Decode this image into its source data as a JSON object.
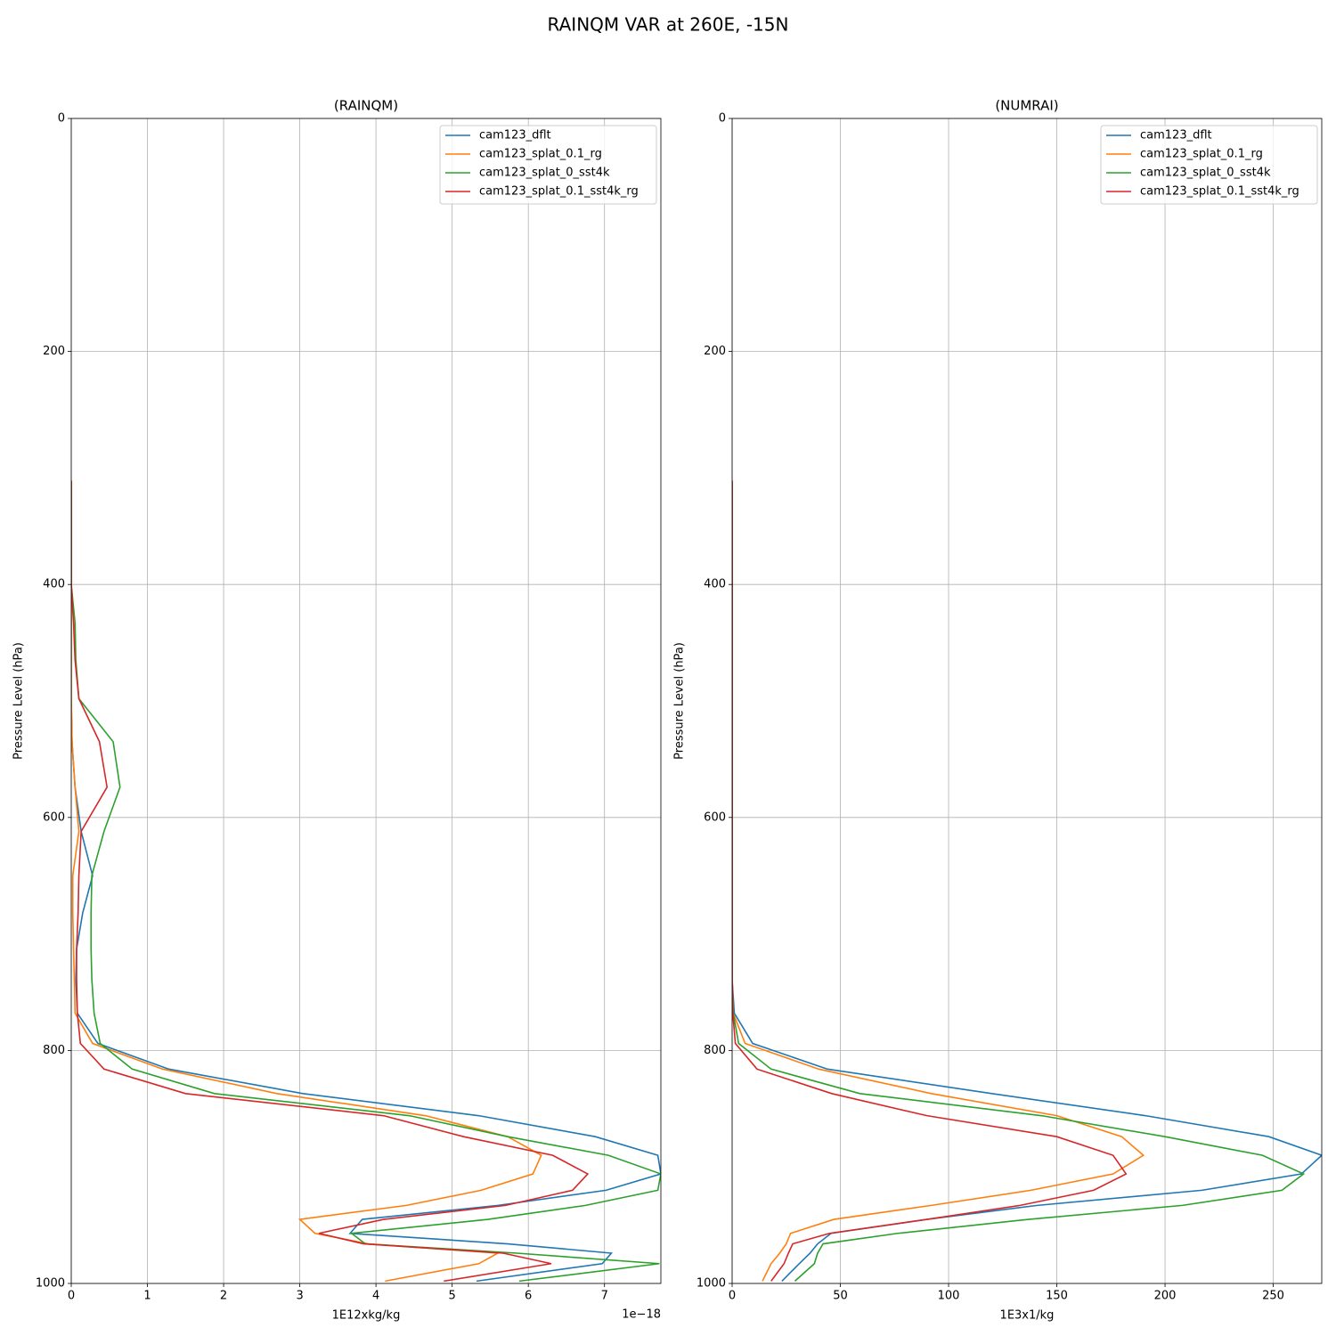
{
  "suptitle": "RAINQM VAR at 260E, -15N",
  "chart_data": [
    {
      "type": "line",
      "title": "(RAINQM)",
      "xlabel": "1E12xkg/kg",
      "ylabel": "Pressure Level (hPa)",
      "x_offset_label": "1e−18",
      "xlim": [
        0,
        7.74
      ],
      "xticks": [
        0,
        1,
        2,
        3,
        4,
        5,
        6,
        7
      ],
      "ylim": [
        1000,
        0
      ],
      "yticks": [
        0,
        200,
        400,
        600,
        800,
        1000
      ],
      "grid": true,
      "legend": "upper right",
      "y": [
        311,
        340,
        370,
        400,
        433,
        465,
        498,
        535,
        574,
        612,
        650,
        682,
        713,
        739,
        768,
        794,
        816,
        837,
        856,
        874,
        890,
        906,
        920,
        933,
        945,
        957,
        966,
        974,
        983,
        998
      ],
      "series": [
        {
          "name": "cam123_dflt",
          "color": "#1f77b4",
          "values": [
            0,
            0,
            0,
            0,
            0,
            0,
            0,
            0.01,
            0.05,
            0.13,
            0.28,
            0.15,
            0.07,
            0.06,
            0.08,
            0.35,
            1.28,
            3.04,
            5.35,
            6.88,
            7.7,
            7.74,
            7.02,
            5.6,
            3.82,
            3.66,
            5.73,
            7.09,
            6.97,
            5.32
          ]
        },
        {
          "name": "cam123_splat_0.1_rg",
          "color": "#ff7f0e",
          "values": [
            0,
            0,
            0,
            0,
            0,
            0,
            0,
            0.01,
            0.05,
            0.1,
            0.02,
            0.02,
            0.03,
            0.04,
            0.05,
            0.28,
            1.2,
            2.7,
            4.65,
            5.73,
            6.17,
            6.06,
            5.38,
            4.4,
            3.0,
            3.2,
            3.9,
            5.6,
            5.35,
            4.12
          ]
        },
        {
          "name": "cam123_splat_0_sst4k",
          "color": "#2ca02c",
          "values": [
            0,
            0,
            0,
            0,
            0.05,
            0.06,
            0.1,
            0.55,
            0.64,
            0.43,
            0.27,
            0.26,
            0.26,
            0.27,
            0.3,
            0.38,
            0.8,
            1.88,
            4.44,
            5.73,
            7.05,
            7.74,
            7.7,
            6.75,
            5.47,
            3.68,
            3.86,
            5.85,
            7.72,
            5.88
          ]
        },
        {
          "name": "cam123_splat_0.1_sst4k_rg",
          "color": "#d62728",
          "values": [
            0,
            0,
            0,
            0,
            0.03,
            0.05,
            0.1,
            0.37,
            0.47,
            0.13,
            0.1,
            0.09,
            0.07,
            0.07,
            0.08,
            0.12,
            0.43,
            1.5,
            4.1,
            5.15,
            6.32,
            6.78,
            6.58,
            5.7,
            4.1,
            3.25,
            3.84,
            5.67,
            6.3,
            4.89
          ]
        }
      ]
    },
    {
      "type": "line",
      "title": "(NUMRAI)",
      "xlabel": "1E3x1/kg",
      "ylabel": "Pressure Level (hPa)",
      "xlim": [
        0,
        272.4
      ],
      "xticks": [
        0,
        50,
        100,
        150,
        200,
        250
      ],
      "ylim": [
        1000,
        0
      ],
      "yticks": [
        0,
        200,
        400,
        600,
        800,
        1000
      ],
      "grid": true,
      "legend": "upper right",
      "y": [
        311,
        340,
        370,
        400,
        433,
        465,
        498,
        535,
        574,
        612,
        650,
        682,
        713,
        739,
        768,
        794,
        816,
        837,
        856,
        874,
        890,
        906,
        920,
        933,
        945,
        957,
        966,
        974,
        983,
        998
      ],
      "series": [
        {
          "name": "cam123_dflt",
          "color": "#1f77b4",
          "values": [
            0,
            0,
            0,
            0,
            0,
            0,
            0,
            0,
            0,
            0,
            0,
            0,
            0,
            0,
            1,
            9.5,
            44,
            120,
            191,
            248,
            272.4,
            263,
            217,
            141,
            90,
            45.7,
            39.5,
            36,
            31,
            23
          ]
        },
        {
          "name": "cam123_splat_0.1_rg",
          "color": "#ff7f0e",
          "values": [
            0,
            0,
            0,
            0,
            0,
            0,
            0,
            0,
            0,
            0,
            0,
            0,
            0,
            0,
            0.5,
            6,
            40,
            92,
            150,
            180,
            190,
            176,
            138,
            92,
            47,
            27,
            25,
            22,
            18,
            14
          ]
        },
        {
          "name": "cam123_splat_0_sst4k",
          "color": "#2ca02c",
          "values": [
            0,
            0,
            0,
            0,
            0,
            0,
            0,
            0,
            0,
            0,
            0,
            0,
            0,
            0,
            0.5,
            3,
            18,
            59,
            143,
            200,
            245,
            264,
            254,
            208,
            137,
            76.5,
            42,
            39.5,
            38,
            29
          ]
        },
        {
          "name": "cam123_splat_0.1_sst4k_rg",
          "color": "#d62728",
          "values": [
            0,
            0,
            0,
            0,
            0,
            0,
            0,
            0,
            0,
            0,
            0,
            0,
            0,
            0,
            0.3,
            1.5,
            11.5,
            46,
            90,
            150,
            176,
            182,
            167,
            133,
            90,
            45,
            28,
            26,
            24,
            18
          ]
        }
      ]
    }
  ]
}
